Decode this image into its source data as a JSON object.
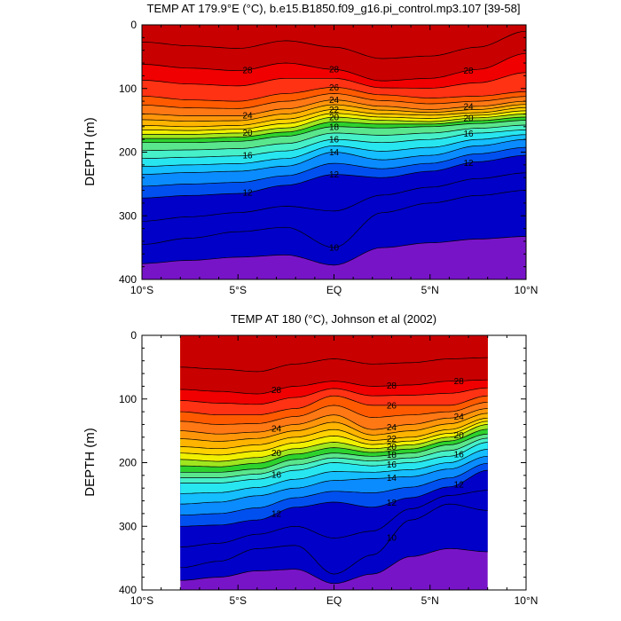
{
  "colors": {
    "scale": [
      "#0000c8",
      "#0050f0",
      "#0a8cff",
      "#14beff",
      "#28e6f0",
      "#46f0c8",
      "#5ae68c",
      "#2dd22d",
      "#a0e61e",
      "#f0f000",
      "#ffd200",
      "#ffb400",
      "#ff960a",
      "#ff7814",
      "#ff5a00",
      "#ff3214",
      "#f00000",
      "#c80000"
    ],
    "deep": "#7814c8",
    "line": "#000000"
  },
  "chart_data": [
    {
      "type": "contour",
      "title": "TEMP AT 179.9°E (°C), b.e15.B1850.f09_g16.pi_control.mp3.107 [39-58]",
      "xlabel": "",
      "ylabel": "DEPTH (m)",
      "xlim": [
        -10,
        10
      ],
      "ylim": [
        400,
        0
      ],
      "x_ticks": [
        -10,
        -5,
        0,
        5,
        10
      ],
      "x_tick_labels": [
        "10°S",
        "5°S",
        "EQ",
        "5°N",
        "10°N"
      ],
      "y_ticks": [
        0,
        100,
        200,
        300,
        400
      ],
      "y_tick_labels": [
        "0",
        "100",
        "200",
        "300",
        "400"
      ],
      "contour_interval": 1,
      "data_extent_x": [
        -10,
        10
      ],
      "labeled_levels": [
        28,
        26,
        24,
        22,
        20,
        18,
        16,
        14,
        12,
        10
      ],
      "isotherm_depths": {
        "x": [
          -10,
          -7.5,
          -5,
          -2.5,
          0,
          2.5,
          5,
          7.5,
          10
        ],
        "T28": [
          62,
          68,
          72,
          60,
          70,
          88,
          84,
          70,
          45
        ],
        "T26": [
          112,
          118,
          120,
          108,
          98,
          110,
          115,
          112,
          105
        ],
        "T24": [
          140,
          143,
          143,
          132,
          118,
          128,
          133,
          128,
          120
        ],
        "T22": [
          158,
          160,
          158,
          148,
          133,
          140,
          142,
          138,
          130
        ],
        "T20": [
          172,
          172,
          170,
          162,
          145,
          150,
          152,
          146,
          140
        ],
        "T18": [
          185,
          185,
          183,
          175,
          160,
          162,
          160,
          155,
          150
        ],
        "T16": [
          210,
          208,
          206,
          198,
          180,
          185,
          180,
          170,
          165
        ],
        "T14": [
          235,
          232,
          230,
          222,
          200,
          212,
          205,
          190,
          180
        ],
        "T12": [
          272,
          268,
          265,
          252,
          235,
          240,
          230,
          215,
          205
        ],
        "T10": [
          345,
          335,
          325,
          318,
          350,
          295,
          280,
          268,
          260
        ]
      }
    },
    {
      "type": "contour",
      "title": "TEMP AT 180 (°C), Johnson et al (2002)",
      "xlabel": "",
      "ylabel": "DEPTH (m)",
      "xlim": [
        -10,
        10
      ],
      "ylim": [
        400,
        0
      ],
      "x_ticks": [
        -10,
        -5,
        0,
        5,
        10
      ],
      "x_tick_labels": [
        "10°S",
        "5°S",
        "EQ",
        "5°N",
        "10°N"
      ],
      "y_ticks": [
        0,
        100,
        200,
        300,
        400
      ],
      "y_tick_labels": [
        "0",
        "100",
        "200",
        "300",
        "400"
      ],
      "contour_interval": 1,
      "data_extent_x": [
        -8,
        8
      ],
      "labeled_levels": [
        28,
        26,
        24,
        22,
        20,
        18,
        16,
        14,
        12,
        10
      ],
      "isotherm_depths": {
        "x": [
          -8,
          -6,
          -4,
          -2,
          0,
          2,
          4,
          6,
          8
        ],
        "T28": [
          85,
          88,
          92,
          80,
          72,
          80,
          78,
          72,
          70
        ],
        "T26": [
          120,
          125,
          125,
          115,
          95,
          110,
          110,
          110,
          95
        ],
        "T24": [
          150,
          155,
          152,
          140,
          125,
          148,
          140,
          130,
          115
        ],
        "T22": [
          175,
          178,
          172,
          160,
          148,
          165,
          160,
          148,
          130
        ],
        "T20": [
          195,
          198,
          192,
          178,
          168,
          178,
          172,
          160,
          140
        ],
        "T18": [
          215,
          215,
          210,
          195,
          185,
          190,
          185,
          172,
          155
        ],
        "T16": [
          232,
          232,
          226,
          212,
          200,
          205,
          200,
          190,
          168
        ],
        "T14": [
          265,
          262,
          252,
          240,
          228,
          225,
          222,
          210,
          190
        ],
        "T12": [
          300,
          298,
          290,
          270,
          262,
          270,
          255,
          238,
          212
        ],
        "T10": [
          365,
          355,
          335,
          330,
          375,
          345,
          290,
          265,
          275
        ]
      }
    }
  ]
}
